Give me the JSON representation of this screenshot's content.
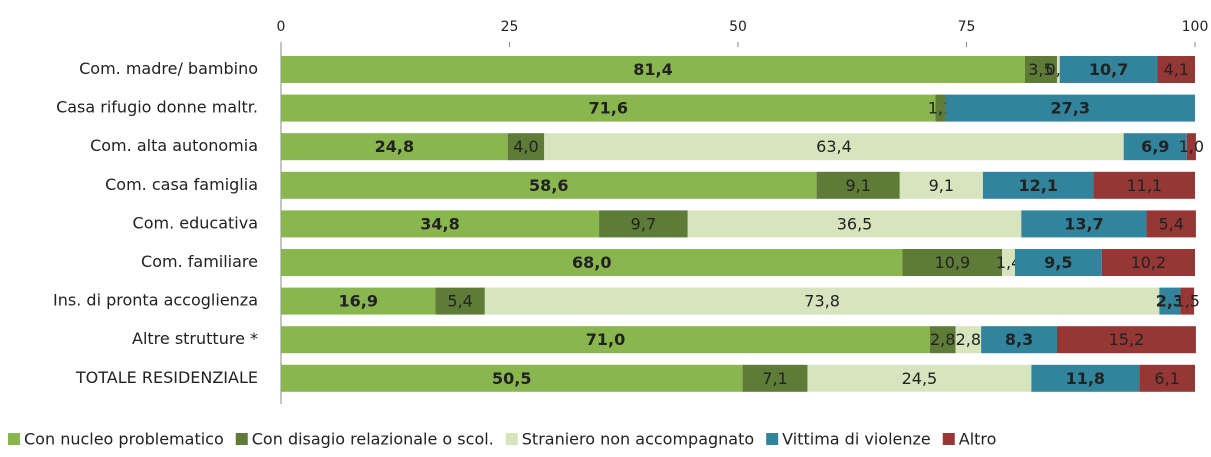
{
  "chart_data": {
    "type": "bar",
    "orientation": "horizontal",
    "stacked": true,
    "categories": [
      "Com. madre/ bambino",
      "Casa rifugio donne maltr.",
      "Com. alta autonomia",
      "Com. casa famiglia",
      "Com. educativa",
      "Com. familiare",
      "Ins. di pronta accoglienza",
      "Altre strutture *",
      "TOTALE RESIDENZIALE"
    ],
    "xlim": [
      0,
      100
    ],
    "xticks": [
      0,
      25,
      50,
      75,
      100
    ],
    "series": [
      {
        "name": "Con nucleo problematico",
        "color": "#8ab650",
        "values": [
          81.4,
          71.6,
          24.8,
          58.6,
          34.8,
          68.0,
          16.9,
          71.0,
          50.5
        ],
        "value_labels": [
          "81,4",
          "71,6",
          "24,8",
          "58,6",
          "34,8",
          "68,0",
          "16,9",
          "71,0",
          "50,5"
        ]
      },
      {
        "name": "Con disagio relazionale o scol.",
        "color": "#5e7b37",
        "values": [
          3.5,
          1.1,
          4.0,
          9.1,
          9.7,
          10.9,
          5.4,
          2.8,
          7.1
        ],
        "value_labels": [
          "3,5",
          "1,1",
          "4,0",
          "9,1",
          "9,7",
          "10,9",
          "5,4",
          "2,8",
          "7,1"
        ]
      },
      {
        "name": "Straniero non accompagnato",
        "color": "#d7e4bd",
        "values": [
          0.3,
          null,
          63.4,
          9.1,
          36.5,
          1.4,
          73.8,
          2.8,
          24.5
        ],
        "value_labels": [
          "0,3",
          null,
          "63,4",
          "9,1",
          "36,5",
          "1,4",
          "73,8",
          "2,8",
          "24,5"
        ]
      },
      {
        "name": "Vittima di violenze",
        "color": "#31849b",
        "values": [
          10.7,
          27.3,
          6.9,
          12.1,
          13.7,
          9.5,
          2.3,
          8.3,
          11.8
        ],
        "value_labels": [
          "10,7",
          "27,3",
          "6,9",
          "12,1",
          "13,7",
          "9,5",
          "2,3",
          "8,3",
          "11,8"
        ]
      },
      {
        "name": "Altro",
        "color": "#953735",
        "values": [
          4.1,
          null,
          1.0,
          11.1,
          5.4,
          10.2,
          1.5,
          15.2,
          6.1
        ],
        "value_labels": [
          "4,1",
          null,
          "1,0",
          "11,1",
          "5,4",
          "10,2",
          "1,5",
          "15,2",
          "6,1"
        ]
      }
    ]
  }
}
